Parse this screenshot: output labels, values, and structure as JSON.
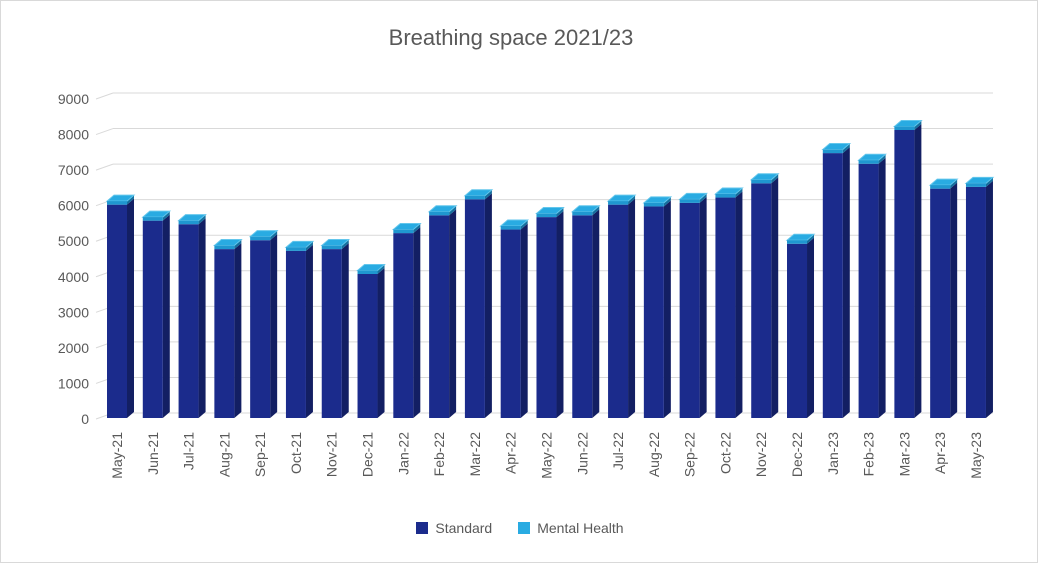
{
  "window": {
    "background_color": "#ffffff",
    "border_color": "#d9d9d9",
    "text_color": "#595959",
    "gridline_color": "#d9d9d9"
  },
  "chart_data": {
    "type": "bar",
    "subtype": "3d-stacked-column",
    "title": "Breathing space 2021/23",
    "xlabel": "",
    "ylabel": "",
    "ylim": [
      0,
      9000
    ],
    "ytick_step": 1000,
    "yticks": [
      0,
      1000,
      2000,
      3000,
      4000,
      5000,
      6000,
      7000,
      8000,
      9000
    ],
    "grid": true,
    "legend_position": "bottom",
    "categories": [
      "May-21",
      "Jun-21",
      "Jul-21",
      "Aug-21",
      "Sep-21",
      "Oct-21",
      "Nov-21",
      "Dec-21",
      "Jan-22",
      "Feb-22",
      "Mar-22",
      "Apr-22",
      "May-22",
      "Jun-22",
      "Jul-22",
      "Aug-22",
      "Sep-22",
      "Oct-22",
      "Nov-22",
      "Dec-22",
      "Jan-23",
      "Feb-23",
      "Mar-23",
      "Apr-23",
      "May-23"
    ],
    "series": [
      {
        "name": "Standard",
        "color": "#1b2b8c",
        "side_color": "#131f63",
        "values": [
          6000,
          5550,
          5450,
          4750,
          5000,
          4700,
          4750,
          4050,
          5200,
          5700,
          6150,
          5300,
          5650,
          5700,
          6000,
          5950,
          6050,
          6200,
          6600,
          4900,
          7450,
          7150,
          8100,
          6450,
          6500
        ]
      },
      {
        "name": "Mental Health",
        "color": "#29abe2",
        "front_color": "#1f97d0",
        "side_color": "#156f9e",
        "top_edge_color": "#62c6ec",
        "values": [
          100,
          100,
          100,
          100,
          100,
          100,
          100,
          100,
          100,
          100,
          100,
          100,
          100,
          100,
          100,
          100,
          100,
          100,
          100,
          100,
          100,
          100,
          100,
          100,
          100
        ]
      }
    ]
  },
  "legend": {
    "items": [
      {
        "label": "Standard",
        "color": "#1b2b8c"
      },
      {
        "label": "Mental Health",
        "color": "#29abe2"
      }
    ]
  }
}
